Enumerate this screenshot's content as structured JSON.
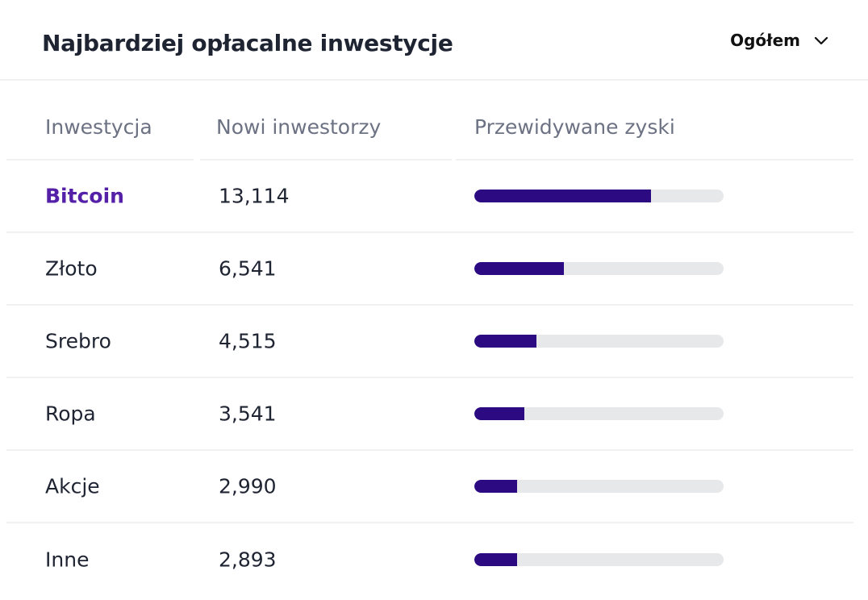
{
  "header": {
    "title": "Najbardziej opłacalne inwestycje",
    "filter_label": "Ogółem",
    "filter_icon": "chevron-down-icon"
  },
  "table": {
    "columns": [
      "Inwestycja",
      "Nowi inwestorzy",
      "Przewidywane zyski"
    ],
    "rows": [
      {
        "name": "Bitcoin",
        "investors": "13,114",
        "profit_fraction": 0.71,
        "active": true
      },
      {
        "name": "Złoto",
        "investors": "6,541",
        "profit_fraction": 0.36,
        "active": false
      },
      {
        "name": "Srebro",
        "investors": "4,515",
        "profit_fraction": 0.25,
        "active": false
      },
      {
        "name": "Ropa",
        "investors": "3,541",
        "profit_fraction": 0.2,
        "active": false
      },
      {
        "name": "Akcje",
        "investors": "2,990",
        "profit_fraction": 0.17,
        "active": false
      },
      {
        "name": "Inne",
        "investors": "2,893",
        "profit_fraction": 0.17,
        "active": false
      }
    ]
  },
  "colors": {
    "accent": "#5420a8",
    "bar_fill": "#2b0a82",
    "bar_track": "#e7e8ea",
    "text": "#1f2433",
    "muted": "#6c7283"
  }
}
